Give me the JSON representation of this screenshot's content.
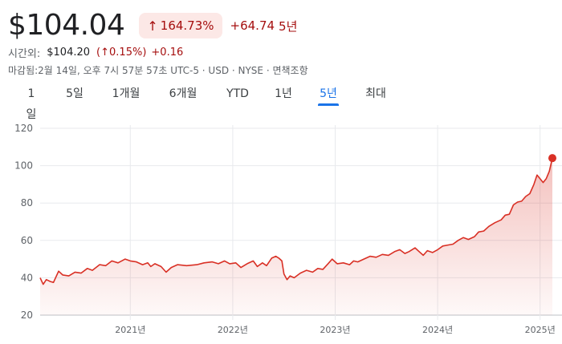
{
  "quote": {
    "price": "$104.04",
    "change_pct": "164.73%",
    "change_abs": "+64.74",
    "period": "5년"
  },
  "after_hours": {
    "label": "시간외:",
    "price": "$104.20",
    "change_pct": "0.15%",
    "change_abs": "+0.16"
  },
  "meta_line": "마감됨:2월 14일, 오후 7시 57분 57초 UTC-5 · USD · NYSE · 면책조항",
  "icons": {
    "up_arrow": "arrow-up-icon"
  },
  "tabs": [
    {
      "label": "1일",
      "active": false
    },
    {
      "label": "5일",
      "active": false
    },
    {
      "label": "1개월",
      "active": false
    },
    {
      "label": "6개월",
      "active": false
    },
    {
      "label": "YTD",
      "active": false
    },
    {
      "label": "1년",
      "active": false
    },
    {
      "label": "5년",
      "active": true
    },
    {
      "label": "최대",
      "active": false
    }
  ],
  "colors": {
    "negative": "#a50e0e",
    "line": "#d93025",
    "accent": "#1a73e8",
    "grid": "#e8eaed"
  },
  "chart_data": {
    "type": "area",
    "title": "",
    "xlabel": "",
    "ylabel": "",
    "ylim": [
      20,
      120
    ],
    "yticks": [
      20,
      40,
      60,
      80,
      100,
      120
    ],
    "xticks": [
      {
        "label": "2021년",
        "t": 2021.0
      },
      {
        "label": "2022년",
        "t": 2022.0
      },
      {
        "label": "2023년",
        "t": 2023.0
      },
      {
        "label": "2024년",
        "t": 2024.0
      },
      {
        "label": "2025년",
        "t": 2025.0
      }
    ],
    "x_range": [
      2020.12,
      2025.12
    ],
    "grid": true,
    "series": [
      {
        "values": [
          [
            2020.12,
            40
          ],
          [
            2020.15,
            36.5
          ],
          [
            2020.18,
            39
          ],
          [
            2020.22,
            38
          ],
          [
            2020.25,
            37.5
          ],
          [
            2020.3,
            43.5
          ],
          [
            2020.34,
            41.5
          ],
          [
            2020.4,
            41
          ],
          [
            2020.46,
            43
          ],
          [
            2020.52,
            42.5
          ],
          [
            2020.58,
            45
          ],
          [
            2020.63,
            44
          ],
          [
            2020.7,
            47
          ],
          [
            2020.76,
            46.5
          ],
          [
            2020.82,
            49
          ],
          [
            2020.88,
            48
          ],
          [
            2020.95,
            50
          ],
          [
            2021.0,
            49
          ],
          [
            2021.06,
            48.5
          ],
          [
            2021.12,
            47
          ],
          [
            2021.17,
            48
          ],
          [
            2021.2,
            46
          ],
          [
            2021.24,
            47.5
          ],
          [
            2021.3,
            46
          ],
          [
            2021.35,
            43
          ],
          [
            2021.4,
            45.5
          ],
          [
            2021.46,
            47
          ],
          [
            2021.55,
            46.5
          ],
          [
            2021.65,
            47
          ],
          [
            2021.72,
            48
          ],
          [
            2021.8,
            48.5
          ],
          [
            2021.86,
            47.5
          ],
          [
            2021.92,
            49
          ],
          [
            2021.97,
            47.5
          ],
          [
            2022.03,
            48
          ],
          [
            2022.08,
            45.5
          ],
          [
            2022.14,
            47.5
          ],
          [
            2022.2,
            49
          ],
          [
            2022.24,
            46
          ],
          [
            2022.29,
            48
          ],
          [
            2022.33,
            46.5
          ],
          [
            2022.38,
            50.5
          ],
          [
            2022.42,
            51.5
          ],
          [
            2022.45,
            50.5
          ],
          [
            2022.48,
            49
          ],
          [
            2022.5,
            42
          ],
          [
            2022.53,
            39
          ],
          [
            2022.56,
            41
          ],
          [
            2022.6,
            40
          ],
          [
            2022.66,
            42.5
          ],
          [
            2022.72,
            44
          ],
          [
            2022.78,
            43
          ],
          [
            2022.83,
            45
          ],
          [
            2022.88,
            44.5
          ],
          [
            2022.93,
            47.5
          ],
          [
            2022.97,
            50
          ],
          [
            2023.02,
            47.5
          ],
          [
            2023.08,
            48
          ],
          [
            2023.14,
            47
          ],
          [
            2023.18,
            49
          ],
          [
            2023.22,
            48.5
          ],
          [
            2023.28,
            50
          ],
          [
            2023.34,
            51.5
          ],
          [
            2023.4,
            51
          ],
          [
            2023.46,
            52.5
          ],
          [
            2023.52,
            52
          ],
          [
            2023.58,
            54
          ],
          [
            2023.63,
            55
          ],
          [
            2023.68,
            53
          ],
          [
            2023.72,
            54
          ],
          [
            2023.78,
            56
          ],
          [
            2023.82,
            54
          ],
          [
            2023.86,
            52
          ],
          [
            2023.9,
            54.5
          ],
          [
            2023.95,
            53.5
          ],
          [
            2024.0,
            55
          ],
          [
            2024.05,
            57
          ],
          [
            2024.1,
            57.5
          ],
          [
            2024.15,
            58
          ],
          [
            2024.2,
            60
          ],
          [
            2024.25,
            61.5
          ],
          [
            2024.3,
            60.5
          ],
          [
            2024.36,
            62
          ],
          [
            2024.4,
            64.5
          ],
          [
            2024.45,
            65
          ],
          [
            2024.5,
            67.5
          ],
          [
            2024.56,
            69.5
          ],
          [
            2024.62,
            71
          ],
          [
            2024.66,
            73.5
          ],
          [
            2024.7,
            74
          ],
          [
            2024.74,
            79
          ],
          [
            2024.78,
            80.5
          ],
          [
            2024.82,
            81
          ],
          [
            2024.86,
            83.5
          ],
          [
            2024.9,
            85
          ],
          [
            2024.94,
            90
          ],
          [
            2024.97,
            95
          ],
          [
            2025.0,
            93
          ],
          [
            2025.03,
            91
          ],
          [
            2025.06,
            93
          ],
          [
            2025.09,
            97
          ],
          [
            2025.12,
            104.04
          ]
        ]
      }
    ]
  }
}
